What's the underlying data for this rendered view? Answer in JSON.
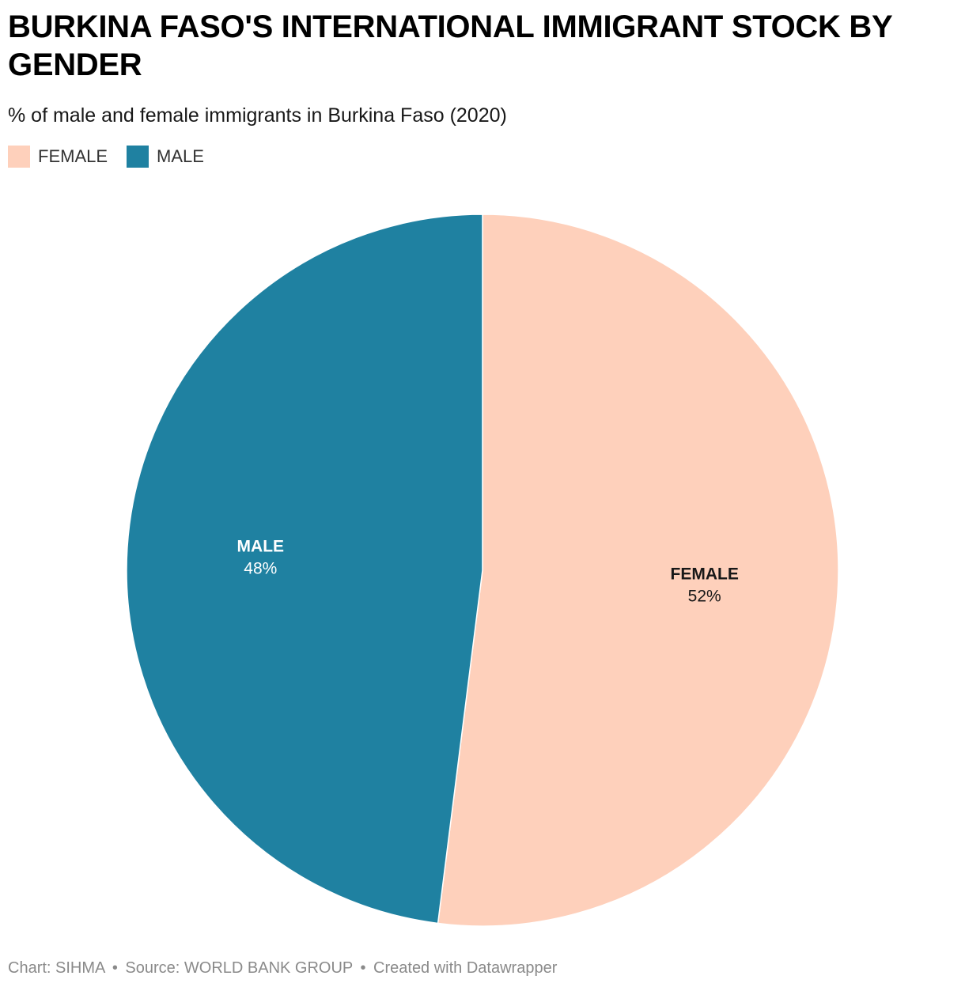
{
  "header": {
    "title": "BURKINA FASO'S INTERNATIONAL IMMIGRANT STOCK BY GENDER",
    "subtitle": "% of male and female immigrants in Burkina Faso (2020)"
  },
  "legend": {
    "items": [
      {
        "label": "FEMALE",
        "color": "#fed0bb"
      },
      {
        "label": "MALE",
        "color": "#1f81a1"
      }
    ]
  },
  "chart_data": {
    "type": "pie",
    "title": "BURKINA FASO'S INTERNATIONAL IMMIGRANT STOCK BY GENDER",
    "subtitle": "% of male and female immigrants in Burkina Faso (2020)",
    "unit": "%",
    "legend_position": "top-left",
    "slices": [
      {
        "name": "FEMALE",
        "value": 52,
        "value_label": "52%",
        "color": "#fed0bb",
        "label_color": "#181818"
      },
      {
        "name": "MALE",
        "value": 48,
        "value_label": "48%",
        "color": "#1f81a1",
        "label_color": "#ffffff"
      }
    ]
  },
  "footer": {
    "chart_credit": "Chart: SIHMA",
    "source": "Source: WORLD BANK GROUP",
    "created_with": "Created with Datawrapper",
    "separator": "•"
  }
}
